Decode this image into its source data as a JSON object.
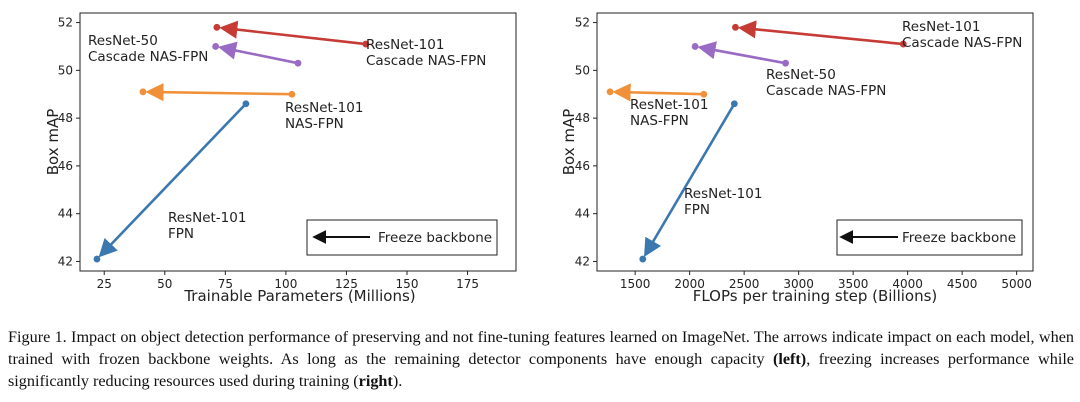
{
  "chart_data": [
    {
      "type": "scatter",
      "title": "",
      "xlabel": "Trainable Parameters (Millions)",
      "ylabel": "Box mAP",
      "xlim": [
        15,
        195
      ],
      "ylim": [
        41.6,
        52.4
      ],
      "xticks": [
        "25",
        "50",
        "75",
        "100",
        "125",
        "150",
        "175"
      ],
      "yticks": [
        "42",
        "44",
        "46",
        "48",
        "50",
        "52"
      ],
      "legend_text": "Freeze backbone",
      "series": [
        {
          "name": "ResNet-101 FPN",
          "label_lines": [
            "ResNet-101",
            "FPN"
          ],
          "color": "#3b78b0",
          "from": [
            83.5,
            48.6
          ],
          "to": [
            22,
            42.1
          ]
        },
        {
          "name": "ResNet-101 NAS-FPN",
          "label_lines": [
            "ResNet-101",
            "NAS-FPN"
          ],
          "color": "#f0913a",
          "from": [
            102.5,
            49.0
          ],
          "to": [
            41,
            49.1
          ]
        },
        {
          "name": "ResNet-50 Cascade NAS-FPN",
          "label_lines": [
            "ResNet-50",
            "Cascade NAS-FPN"
          ],
          "color": "#9a6bc4",
          "from": [
            105,
            50.3
          ],
          "to": [
            71,
            51.0
          ]
        },
        {
          "name": "ResNet-101 Cascade NAS-FPN",
          "label_lines": [
            "ResNet-101",
            "Cascade NAS-FPN"
          ],
          "color": "#c63b35",
          "from": [
            133,
            51.1
          ],
          "to": [
            71.5,
            51.8
          ]
        }
      ]
    },
    {
      "type": "scatter",
      "title": "",
      "xlabel": "FLOPs per training step (Billions)",
      "ylabel": "Box mAP",
      "xlim": [
        1150,
        5150
      ],
      "ylim": [
        41.6,
        52.4
      ],
      "xticks": [
        "1500",
        "2000",
        "2500",
        "3000",
        "3500",
        "4000",
        "4500",
        "5000"
      ],
      "yticks": [
        "42",
        "44",
        "46",
        "48",
        "50",
        "52"
      ],
      "legend_text": "Freeze backbone",
      "series": [
        {
          "name": "ResNet-101 FPN",
          "label_lines": [
            "ResNet-101",
            "FPN"
          ],
          "color": "#3b78b0",
          "from": [
            2410,
            48.6
          ],
          "to": [
            1570,
            42.1
          ]
        },
        {
          "name": "ResNet-101 NAS-FPN",
          "label_lines": [
            "ResNet-101",
            "NAS-FPN"
          ],
          "color": "#f0913a",
          "from": [
            2130,
            49.0
          ],
          "to": [
            1270,
            49.1
          ]
        },
        {
          "name": "ResNet-50 Cascade NAS-FPN",
          "label_lines": [
            "ResNet-50",
            "Cascade NAS-FPN"
          ],
          "color": "#9a6bc4",
          "from": [
            2880,
            50.3
          ],
          "to": [
            2050,
            51.0
          ]
        },
        {
          "name": "ResNet-101 Cascade NAS-FPN",
          "label_lines": [
            "ResNet-101",
            "Cascade NAS-FPN"
          ],
          "color": "#c63b35",
          "from": [
            3960,
            51.1
          ],
          "to": [
            2420,
            51.8
          ]
        }
      ]
    }
  ],
  "caption": {
    "part1": "Figure 1.   Impact on object detection performance of preserving and not fine-tuning features learned on ImageNet. The arrows indicate impact on each model, when trained with frozen backbone weights. As long as the remaining detector components have enough capacity ",
    "bold1": "(left)",
    "part2": ", freezing increases performance while significantly reducing resources used during training (",
    "bold2": "right",
    "part3": ")."
  }
}
